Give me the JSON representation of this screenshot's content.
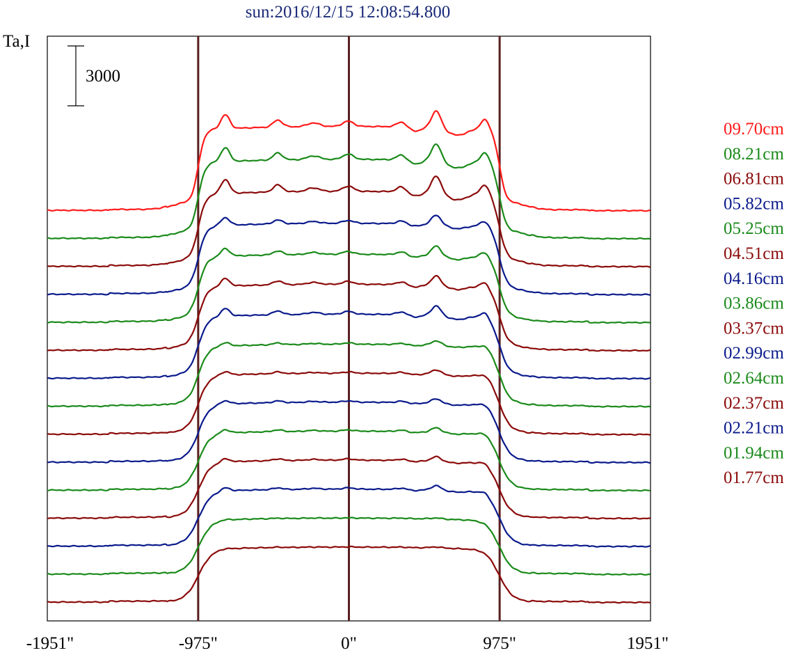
{
  "chart_data": {
    "type": "line",
    "title": "sun:2016/12/15 12:08:54.800",
    "ylabel": "Ta,I",
    "scale_bar_label": "3000",
    "xlim": [
      -1951,
      1951
    ],
    "x_ticks": [
      {
        "value": -1951,
        "label": "-1951\""
      },
      {
        "value": -975,
        "label": "-975\""
      },
      {
        "value": 0,
        "label": "0\""
      },
      {
        "value": 975,
        "label": "975\""
      },
      {
        "value": 1951,
        "label": "1951\""
      }
    ],
    "vertical_markers": [
      -975,
      0,
      975
    ],
    "marker_color": "#5a1f1f",
    "legend_position": "right",
    "series": [
      {
        "name": "09.70cm",
        "color": "#ff1a1a",
        "peak": 4200,
        "features": "strong"
      },
      {
        "name": "08.21cm",
        "color": "#1a8a1a",
        "peak": 3950,
        "features": "strong"
      },
      {
        "name": "06.81cm",
        "color": "#8b0a0a",
        "peak": 3750,
        "features": "strong"
      },
      {
        "name": "05.82cm",
        "color": "#0a1a8b",
        "peak": 3550,
        "features": "medium"
      },
      {
        "name": "05.25cm",
        "color": "#1a8a1a",
        "peak": 3400,
        "features": "medium"
      },
      {
        "name": "04.51cm",
        "color": "#8b0a0a",
        "peak": 3300,
        "features": "medium"
      },
      {
        "name": "04.16cm",
        "color": "#0a1a8b",
        "peak": 3200,
        "features": "medium"
      },
      {
        "name": "03.86cm",
        "color": "#1a8a1a",
        "peak": 3100,
        "features": "weak"
      },
      {
        "name": "03.37cm",
        "color": "#8b0a0a",
        "peak": 3050,
        "features": "weak"
      },
      {
        "name": "02.99cm",
        "color": "#0a1a8b",
        "peak": 3000,
        "features": "weak"
      },
      {
        "name": "02.64cm",
        "color": "#1a8a1a",
        "peak": 2950,
        "features": "weak"
      },
      {
        "name": "02.37cm",
        "color": "#8b0a0a",
        "peak": 2900,
        "features": "weak"
      },
      {
        "name": "02.21cm",
        "color": "#0a1a8b",
        "peak": 2850,
        "features": "weak"
      },
      {
        "name": "01.94cm",
        "color": "#1a8a1a",
        "peak": 2800,
        "features": "none"
      },
      {
        "name": "01.77cm",
        "color": "#8b0a0a",
        "peak": 2750,
        "features": "none"
      }
    ]
  }
}
